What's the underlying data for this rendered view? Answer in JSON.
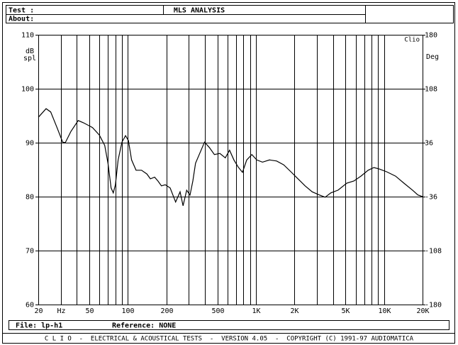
{
  "header": {
    "test_label": "Test :",
    "about_label": "About:",
    "title": "MLS ANALYSIS"
  },
  "chart_data": {
    "type": "line",
    "x": [
      20,
      23,
      25,
      28,
      31,
      32.5,
      36,
      41,
      45,
      53,
      60,
      66,
      70,
      74,
      77,
      80,
      84,
      90,
      96,
      101,
      107,
      116,
      128,
      141,
      150,
      162,
      172,
      183,
      196,
      214,
      236,
      256,
      270,
      288,
      306,
      322,
      338,
      367,
      397,
      433,
      474,
      523,
      577,
      623,
      673,
      727,
      785,
      848,
      929,
      1015,
      1125,
      1278,
      1452,
      1650,
      1875,
      2130,
      2420,
      2750,
      3130,
      3470,
      3850,
      4380,
      5120,
      5820,
      6610,
      7520,
      8340,
      9230,
      10500,
      12300,
      14300,
      16700,
      18400,
      20000
    ],
    "values": [
      94.7,
      96.3,
      95.7,
      92.8,
      90.1,
      90,
      92.1,
      94.1,
      93.7,
      92.8,
      91.4,
      89.5,
      86.2,
      81.6,
      80.7,
      82.2,
      86.8,
      90.1,
      91.3,
      90.4,
      86.8,
      84.9,
      84.9,
      84.2,
      83.3,
      83.6,
      82.9,
      82,
      82.2,
      81.6,
      79,
      80.9,
      78.3,
      81.2,
      80.3,
      82.9,
      86.2,
      88.2,
      90.1,
      89.1,
      87.8,
      88,
      87.2,
      88.6,
      86.8,
      85.5,
      84.5,
      86.8,
      87.8,
      86.8,
      86.4,
      86.8,
      86.6,
      85.9,
      84.6,
      83.3,
      82,
      80.9,
      80.3,
      79.9,
      80.7,
      81.2,
      82.5,
      82.9,
      83.8,
      84.9,
      85.4,
      85.1,
      84.6,
      83.8,
      82.5,
      81.2,
      80.3,
      80
    ],
    "color": "#000000",
    "xscale": "log",
    "xlim": [
      20,
      20000
    ],
    "xticks": [
      20,
      {
        "value": 30,
        "label": "Hz"
      },
      50,
      100,
      200,
      500,
      {
        "value": 1000,
        "label": "1K"
      },
      {
        "value": 2000,
        "label": "2K"
      },
      {
        "value": 5000,
        "label": "5K"
      },
      {
        "value": 10000,
        "label": "10K"
      },
      {
        "value": 20000,
        "label": "20K"
      }
    ],
    "x_minor_ticks": [
      40,
      60,
      70,
      80,
      90,
      300,
      400,
      600,
      700,
      800,
      900,
      3000,
      4000,
      6000,
      7000,
      8000,
      9000
    ],
    "ylim": [
      60,
      110
    ],
    "yticks": [
      60,
      70,
      80,
      90,
      100,
      110
    ],
    "y2lim": [
      -180,
      180
    ],
    "y2ticks": [
      -180,
      -108,
      -36,
      36,
      108,
      180
    ],
    "ylabel": [
      "dB",
      "spl"
    ],
    "y2label": "Deg",
    "brand": "Clio",
    "grid": true
  },
  "footer": {
    "file": "File: lp-h1",
    "reference": "Reference: NONE",
    "status": "C L I O  -  ELECTRICAL & ACOUSTICAL TESTS  -  VERSION 4.05  -  COPYRIGHT (C) 1991-97 AUDIOMATICA"
  }
}
